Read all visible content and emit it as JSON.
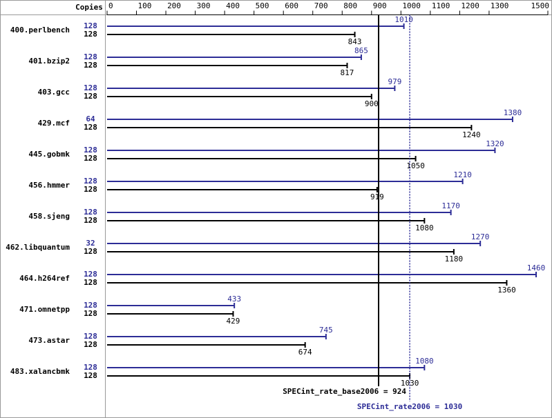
{
  "chart_data": {
    "type": "bar",
    "orientation": "horizontal",
    "copies_header": "Copies",
    "categories": [
      "400.perlbench",
      "401.bzip2",
      "403.gcc",
      "429.mcf",
      "445.gobmk",
      "456.hmmer",
      "458.sjeng",
      "462.libquantum",
      "464.h264ref",
      "471.omnetpp",
      "473.astar",
      "483.xalancbmk"
    ],
    "series": [
      {
        "color": "#2c2c96",
        "label_side": "above",
        "copies": [
          128,
          128,
          128,
          64,
          128,
          128,
          128,
          32,
          128,
          128,
          128,
          128
        ],
        "values": [
          1010,
          865,
          979,
          1380,
          1320,
          1210,
          1170,
          1270,
          1460,
          433,
          745,
          1080
        ]
      },
      {
        "color": "#000000",
        "label_side": "below",
        "copies": [
          128,
          128,
          128,
          128,
          128,
          128,
          128,
          128,
          128,
          128,
          128,
          128
        ],
        "values": [
          843,
          817,
          900,
          1240,
          1050,
          919,
          1080,
          1180,
          1360,
          429,
          674,
          1030
        ]
      }
    ],
    "xlim": [
      0,
      1500
    ],
    "xticks": [
      0,
      100,
      200,
      300,
      400,
      500,
      600,
      700,
      800,
      900,
      1000,
      1100,
      1200,
      1300,
      1500
    ],
    "reference_lines": [
      {
        "value": 924,
        "label": "SPECint_rate_base2006 = 924",
        "color": "#000000",
        "style": "solid"
      },
      {
        "value": 1030,
        "label": "SPECint_rate2006 = 1030",
        "color": "#2c2c96",
        "style": "dotted"
      }
    ]
  }
}
